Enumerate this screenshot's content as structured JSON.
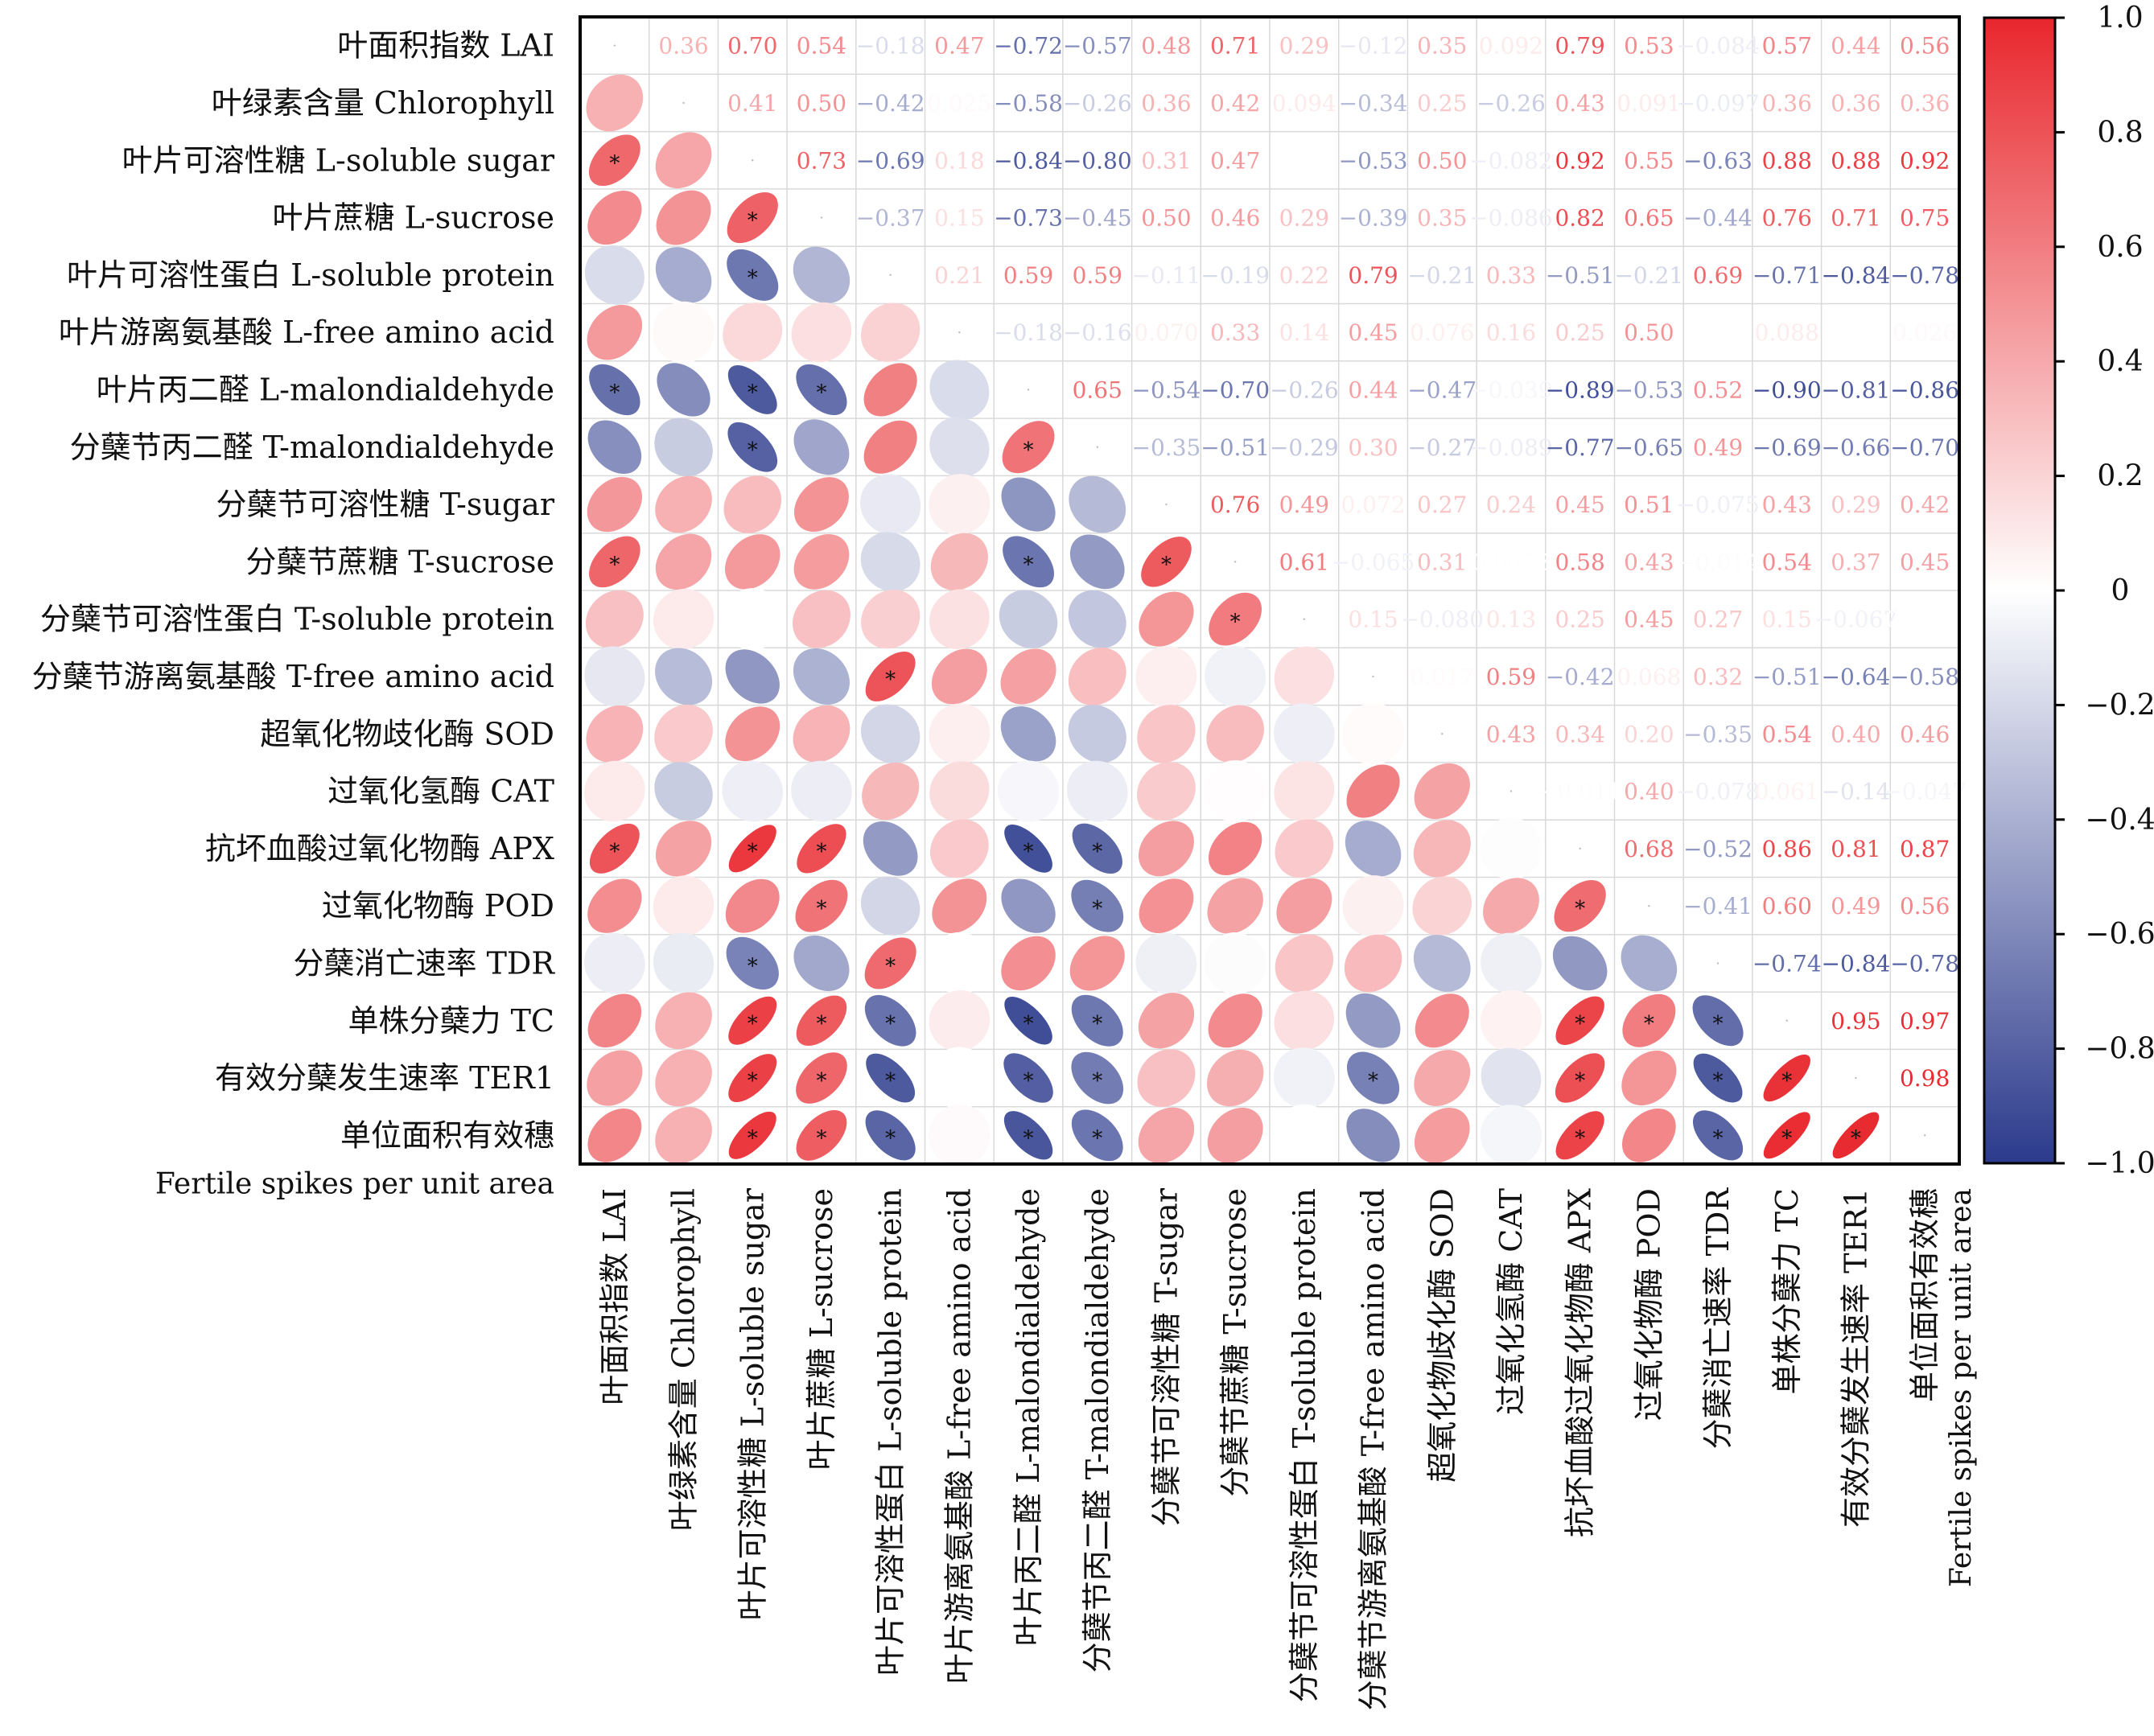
{
  "chart_data": {
    "type": "heatmap",
    "title": "",
    "row_labels": [
      "叶面积指数 LAI",
      "叶绿素含量 Chlorophyll",
      "叶片可溶性糖 L-soluble sugar",
      "叶片蔗糖 L-sucrose",
      "叶片可溶性蛋白 L-soluble protein",
      "叶片游离氨基酸 L-free amino acid",
      "叶片丙二醛 L-malondialdehyde",
      "分蘖节丙二醛 T-malondialdehyde",
      "分蘖节可溶性糖 T-sugar",
      "分蘖节蔗糖 T-sucrose",
      "分蘖节可溶性蛋白 T-soluble protein",
      "分蘖节游离氨基酸 T-free amino acid",
      "超氧化物歧化酶 SOD",
      "过氧化氢酶 CAT",
      "抗坏血酸过氧化物酶 APX",
      "过氧化物酶 POD",
      "分蘖消亡速率 TDR",
      "单株分蘖力 TC",
      "有效分蘖发生速率 TER1",
      "单位面积有效穗 Fertile spikes per unit area"
    ],
    "row_labels_line1": [
      "叶面积指数 LAI",
      "叶绿素含量 Chlorophyll",
      "叶片可溶性糖 L-soluble sugar",
      "叶片蔗糖 L-sucrose",
      "叶片可溶性蛋白 L-soluble protein",
      "叶片游离氨基酸 L-free amino acid",
      "叶片丙二醛 L-malondialdehyde",
      "分蘖节丙二醛 T-malondialdehyde",
      "分蘖节可溶性糖 T-sugar",
      "分蘖节蔗糖 T-sucrose",
      "分蘖节可溶性蛋白 T-soluble protein",
      "分蘖节游离氨基酸 T-free amino acid",
      "超氧化物歧化酶 SOD",
      "过氧化氢酶 CAT",
      "抗坏血酸过氧化物酶 APX",
      "过氧化物酶 POD",
      "分蘖消亡速率 TDR",
      "单株分蘖力 TC",
      "有效分蘖发生速率 TER1",
      "单位面积有效穗"
    ],
    "row_labels_line2": [
      "",
      "",
      "",
      "",
      "",
      "",
      "",
      "",
      "",
      "",
      "",
      "",
      "",
      "",
      "",
      "",
      "",
      "",
      "",
      "Fertile spikes per unit area"
    ],
    "column_labels": [
      "叶面积指数 LAI",
      "叶绿素含量 Chlorophyll",
      "叶片可溶性糖 L-soluble sugar",
      "叶片蔗糖 L-sucrose",
      "叶片可溶性蛋白 L-soluble protein",
      "叶片游离氨基酸 L-free amino acid",
      "叶片丙二醛 L-malondialdehyde",
      "分蘖节丙二醛 T-malondialdehyde",
      "分蘖节可溶性糖 T-sugar",
      "分蘖节蔗糖 T-sucrose",
      "分蘖节可溶性蛋白 T-soluble protein",
      "分蘖节游离氨基酸 T-free amino acid",
      "超氧化物歧化酶 SOD",
      "过氧化氢酶 CAT",
      "抗坏血酸过氧化物酶 APX",
      "过氧化物酶 POD",
      "分蘖消亡速率 TDR",
      "单株分蘖力 TC",
      "有效分蘖发生速率 TER1",
      "单位面积有效穗 Fertile spikes per unit area"
    ],
    "column_labels_line1": [
      "叶面积指数 LAI",
      "叶绿素含量 Chlorophyll",
      "叶片可溶性糖 L-soluble sugar",
      "叶片蔗糖 L-sucrose",
      "叶片可溶性蛋白 L-soluble protein",
      "叶片游离氨基酸 L-free amino acid",
      "叶片丙二醛 L-malondialdehyde",
      "分蘖节丙二醛 T-malondialdehyde",
      "分蘖节可溶性糖 T-sugar",
      "分蘖节蔗糖 T-sucrose",
      "分蘖节可溶性蛋白 T-soluble protein",
      "分蘖节游离氨基酸 T-free amino acid",
      "超氧化物歧化酶 SOD",
      "过氧化氢酶 CAT",
      "抗坏血酸过氧化物酶 APX",
      "过氧化物酶 POD",
      "分蘖消亡速率 TDR",
      "单株分蘖力 TC",
      "有效分蘖发生速率 TER1",
      "单位面积有效穗"
    ],
    "column_labels_line2": [
      "",
      "",
      "",
      "",
      "",
      "",
      "",
      "",
      "",
      "",
      "",
      "",
      "",
      "",
      "",
      "",
      "",
      "",
      "",
      "Fertile spikes per unit area"
    ],
    "matrix": [
      [
        1,
        0.36,
        0.7,
        0.54,
        -0.18,
        0.47,
        -0.72,
        -0.57,
        0.48,
        0.71,
        0.29,
        -0.12,
        0.35,
        0.092,
        0.79,
        0.53,
        -0.084,
        0.57,
        0.44,
        0.56
      ],
      [
        0.36,
        1,
        0.41,
        0.5,
        -0.42,
        0.025,
        -0.58,
        -0.26,
        0.36,
        0.42,
        0.094,
        -0.34,
        0.25,
        -0.26,
        0.43,
        0.091,
        -0.097,
        0.36,
        0.36,
        0.36
      ],
      [
        0.7,
        0.41,
        1,
        0.73,
        -0.69,
        0.18,
        -0.84,
        -0.8,
        0.31,
        0.47,
        0.001,
        -0.53,
        0.5,
        -0.082,
        0.92,
        0.55,
        -0.63,
        0.88,
        0.88,
        0.92
      ],
      [
        0.54,
        0.5,
        0.73,
        1,
        -0.37,
        0.15,
        -0.73,
        -0.45,
        0.5,
        0.46,
        0.29,
        -0.39,
        0.35,
        -0.086,
        0.82,
        0.65,
        -0.44,
        0.76,
        0.71,
        0.75
      ],
      [
        -0.18,
        -0.42,
        -0.69,
        -0.37,
        1,
        0.21,
        0.59,
        0.59,
        -0.11,
        -0.19,
        0.22,
        0.79,
        -0.21,
        0.33,
        -0.51,
        -0.21,
        0.69,
        -0.71,
        -0.84,
        -0.78
      ],
      [
        0.47,
        0.025,
        0.18,
        0.15,
        0.21,
        1,
        -0.18,
        -0.16,
        0.07,
        0.33,
        0.14,
        0.45,
        0.076,
        0.16,
        0.25,
        0.5,
        0.002,
        0.088,
        0.001,
        0.026
      ],
      [
        -0.72,
        -0.58,
        -0.84,
        -0.73,
        0.59,
        -0.18,
        1,
        0.65,
        -0.54,
        -0.7,
        -0.26,
        0.44,
        -0.47,
        -0.039,
        -0.89,
        -0.53,
        0.52,
        -0.9,
        -0.81,
        -0.86
      ],
      [
        -0.57,
        -0.26,
        -0.8,
        -0.45,
        0.59,
        -0.16,
        0.65,
        1,
        -0.35,
        -0.51,
        -0.29,
        0.3,
        -0.27,
        -0.089,
        -0.77,
        -0.65,
        0.49,
        -0.69,
        -0.66,
        -0.7
      ],
      [
        0.48,
        0.36,
        0.31,
        0.5,
        -0.11,
        0.07,
        -0.54,
        -0.35,
        1,
        0.76,
        0.49,
        0.072,
        0.27,
        0.24,
        0.45,
        0.51,
        -0.075,
        0.43,
        0.29,
        0.42
      ],
      [
        0.71,
        0.42,
        0.47,
        0.46,
        -0.19,
        0.33,
        -0.7,
        -0.51,
        0.76,
        1,
        0.61,
        -0.065,
        0.31,
        0.0078,
        0.58,
        0.43,
        -0.014,
        0.54,
        0.37,
        0.45
      ],
      [
        0.29,
        0.094,
        0.001,
        0.29,
        0.22,
        0.14,
        -0.26,
        -0.29,
        0.49,
        0.61,
        1,
        0.15,
        -0.08,
        0.13,
        0.25,
        0.45,
        0.27,
        0.15,
        -0.067,
        0.0012
      ],
      [
        -0.12,
        -0.34,
        -0.53,
        -0.39,
        0.79,
        0.45,
        0.44,
        0.3,
        0.072,
        -0.065,
        0.15,
        1,
        0.017,
        0.59,
        -0.42,
        0.068,
        0.32,
        -0.51,
        -0.64,
        -0.58
      ],
      [
        0.35,
        0.25,
        0.5,
        0.35,
        -0.21,
        0.076,
        -0.47,
        -0.27,
        0.27,
        0.31,
        -0.08,
        0.017,
        1,
        0.43,
        0.34,
        0.2,
        -0.35,
        0.54,
        0.4,
        0.46
      ],
      [
        0.092,
        -0.26,
        -0.082,
        -0.086,
        0.33,
        0.16,
        -0.039,
        -0.089,
        0.24,
        0.0078,
        0.13,
        0.59,
        0.43,
        1,
        -0.011,
        0.4,
        -0.078,
        0.061,
        -0.14,
        -0.047
      ],
      [
        0.79,
        0.43,
        0.92,
        0.82,
        -0.51,
        0.25,
        -0.89,
        -0.77,
        0.45,
        0.58,
        0.25,
        -0.42,
        0.34,
        -0.011,
        1,
        0.68,
        -0.52,
        0.86,
        0.81,
        0.87
      ],
      [
        0.53,
        0.091,
        0.55,
        0.65,
        -0.21,
        0.5,
        -0.53,
        -0.65,
        0.51,
        0.43,
        0.45,
        0.068,
        0.2,
        0.4,
        0.68,
        1,
        -0.41,
        0.6,
        0.49,
        0.56
      ],
      [
        -0.084,
        -0.097,
        -0.63,
        -0.44,
        0.69,
        0.002,
        0.52,
        0.49,
        -0.075,
        -0.014,
        0.27,
        0.32,
        -0.35,
        -0.078,
        -0.52,
        -0.41,
        1,
        -0.74,
        -0.84,
        -0.78
      ],
      [
        0.57,
        0.36,
        0.88,
        0.76,
        -0.71,
        0.088,
        -0.9,
        -0.69,
        0.43,
        0.54,
        0.15,
        -0.51,
        0.54,
        0.061,
        0.86,
        0.6,
        -0.74,
        1,
        0.95,
        0.97
      ],
      [
        0.44,
        0.36,
        0.88,
        0.71,
        -0.84,
        0.001,
        -0.81,
        -0.66,
        0.29,
        0.37,
        -0.067,
        -0.64,
        0.4,
        -0.14,
        0.81,
        0.49,
        -0.84,
        0.95,
        1,
        0.98
      ],
      [
        0.56,
        0.36,
        0.92,
        0.75,
        -0.78,
        0.026,
        -0.86,
        -0.7,
        0.42,
        0.45,
        0.0012,
        -0.58,
        0.46,
        -0.047,
        0.87,
        0.56,
        -0.78,
        0.97,
        0.98,
        1
      ]
    ],
    "upper_triangle_labels": [
      [
        "",
        "0.36",
        "0.70",
        "0.54",
        "−0.18",
        "0.47",
        "−0.72",
        "−0.57",
        "0.48",
        "0.71",
        "0.29",
        "−0.12",
        "0.35",
        "0.092",
        "0.79",
        "0.53",
        "−0.084",
        "0.57",
        "0.44",
        "0.56"
      ],
      [
        "",
        "",
        "0.41",
        "0.50",
        "−0.42",
        "0.025",
        "−0.58",
        "−0.26",
        "0.36",
        "0.42",
        "0.094",
        "−0.34",
        "0.25",
        "−0.26",
        "0.43",
        "0.091",
        "−0.097",
        "0.36",
        "0.36",
        "0.36"
      ],
      [
        "",
        "",
        "",
        "0.73",
        "−0.69",
        "0.18",
        "−0.84",
        "−0.80",
        "0.31",
        "0.47",
        "",
        "−0.53",
        "0.50",
        "−0.082",
        "0.92",
        "0.55",
        "−0.63",
        "0.88",
        "0.88",
        "0.92"
      ],
      [
        "",
        "",
        "",
        "",
        "−0.37",
        "0.15",
        "−0.73",
        "−0.45",
        "0.50",
        "0.46",
        "0.29",
        "−0.39",
        "0.35",
        "−0.086",
        "0.82",
        "0.65",
        "−0.44",
        "0.76",
        "0.71",
        "0.75"
      ],
      [
        "",
        "",
        "",
        "",
        "",
        "0.21",
        "0.59",
        "0.59",
        "−0.11",
        "−0.19",
        "0.22",
        "0.79",
        "−0.21",
        "0.33",
        "−0.51",
        "−0.21",
        "0.69",
        "−0.71",
        "−0.84",
        "−0.78"
      ],
      [
        "",
        "",
        "",
        "",
        "",
        "",
        "−0.18",
        "−0.16",
        "0.070",
        "0.33",
        "0.14",
        "0.45",
        "0.076",
        "0.16",
        "0.25",
        "0.50",
        "",
        "0.088",
        "",
        "0.026"
      ],
      [
        "",
        "",
        "",
        "",
        "",
        "",
        "",
        "0.65",
        "−0.54",
        "−0.70",
        "−0.26",
        "0.44",
        "−0.47",
        "−0.039",
        "−0.89",
        "−0.53",
        "0.52",
        "−0.90",
        "−0.81",
        "−0.86"
      ],
      [
        "",
        "",
        "",
        "",
        "",
        "",
        "",
        "",
        "−0.35",
        "−0.51",
        "−0.29",
        "0.30",
        "−0.27",
        "−0.089",
        "−0.77",
        "−0.65",
        "0.49",
        "−0.69",
        "−0.66",
        "−0.70"
      ],
      [
        "",
        "",
        "",
        "",
        "",
        "",
        "",
        "",
        "",
        "0.76",
        "0.49",
        "0.072",
        "0.27",
        "0.24",
        "0.45",
        "0.51",
        "−0.075",
        "0.43",
        "0.29",
        "0.42"
      ],
      [
        "",
        "",
        "",
        "",
        "",
        "",
        "",
        "",
        "",
        "",
        "0.61",
        "−0.065",
        "0.31",
        "0.0078",
        "0.58",
        "0.43",
        "−0.014",
        "0.54",
        "0.37",
        "0.45"
      ],
      [
        "",
        "",
        "",
        "",
        "",
        "",
        "",
        "",
        "",
        "",
        "",
        "0.15",
        "−0.080",
        "0.13",
        "0.25",
        "0.45",
        "0.27",
        "0.15",
        "−0.067",
        "0.0012"
      ],
      [
        "",
        "",
        "",
        "",
        "",
        "",
        "",
        "",
        "",
        "",
        "",
        "",
        "0.017",
        "0.59",
        "−0.42",
        "0.068",
        "0.32",
        "−0.51",
        "−0.64",
        "−0.58"
      ],
      [
        "",
        "",
        "",
        "",
        "",
        "",
        "",
        "",
        "",
        "",
        "",
        "",
        "",
        "0.43",
        "0.34",
        "0.20",
        "−0.35",
        "0.54",
        "0.40",
        "0.46"
      ],
      [
        "",
        "",
        "",
        "",
        "",
        "",
        "",
        "",
        "",
        "",
        "",
        "",
        "",
        "",
        "−0.011",
        "0.40",
        "−0.078",
        "0.061",
        "−0.14",
        "−0.047"
      ],
      [
        "",
        "",
        "",
        "",
        "",
        "",
        "",
        "",
        "",
        "",
        "",
        "",
        "",
        "",
        "",
        "0.68",
        "−0.52",
        "0.86",
        "0.81",
        "0.87"
      ],
      [
        "",
        "",
        "",
        "",
        "",
        "",
        "",
        "",
        "",
        "",
        "",
        "",
        "",
        "",
        "",
        "",
        "−0.41",
        "0.60",
        "0.49",
        "0.56"
      ],
      [
        "",
        "",
        "",
        "",
        "",
        "",
        "",
        "",
        "",
        "",
        "",
        "",
        "",
        "",
        "",
        "",
        "",
        "−0.74",
        "−0.84",
        "−0.78"
      ],
      [
        "",
        "",
        "",
        "",
        "",
        "",
        "",
        "",
        "",
        "",
        "",
        "",
        "",
        "",
        "",
        "",
        "",
        "",
        "0.95",
        "0.97"
      ],
      [
        "",
        "",
        "",
        "",
        "",
        "",
        "",
        "",
        "",
        "",
        "",
        "",
        "",
        "",
        "",
        "",
        "",
        "",
        "",
        "0.98"
      ],
      [
        "",
        "",
        "",
        "",
        "",
        "",
        "",
        "",
        "",
        "",
        "",
        "",
        "",
        "",
        "",
        "",
        "",
        "",
        "",
        ""
      ]
    ],
    "significance_marker": "*",
    "colorbar": {
      "range": [
        -1,
        1
      ],
      "ticks": [
        1.0,
        0.8,
        0.6,
        0.4,
        0.2,
        0,
        -0.2,
        -0.4,
        -0.6,
        -0.8,
        -1.0
      ],
      "tick_labels": [
        "1.0",
        "0.8",
        "0.6",
        "0.4",
        "0.2",
        "0",
        "−0.2",
        "−0.4",
        "−0.6",
        "−0.8",
        "−1.0"
      ],
      "colors": {
        "negative": "#2b3a8c",
        "zero": "#ffffff",
        "positive": "#e8272d"
      }
    },
    "lower_triangle": "ellipses",
    "upper_triangle": "numbers",
    "grid": true
  }
}
